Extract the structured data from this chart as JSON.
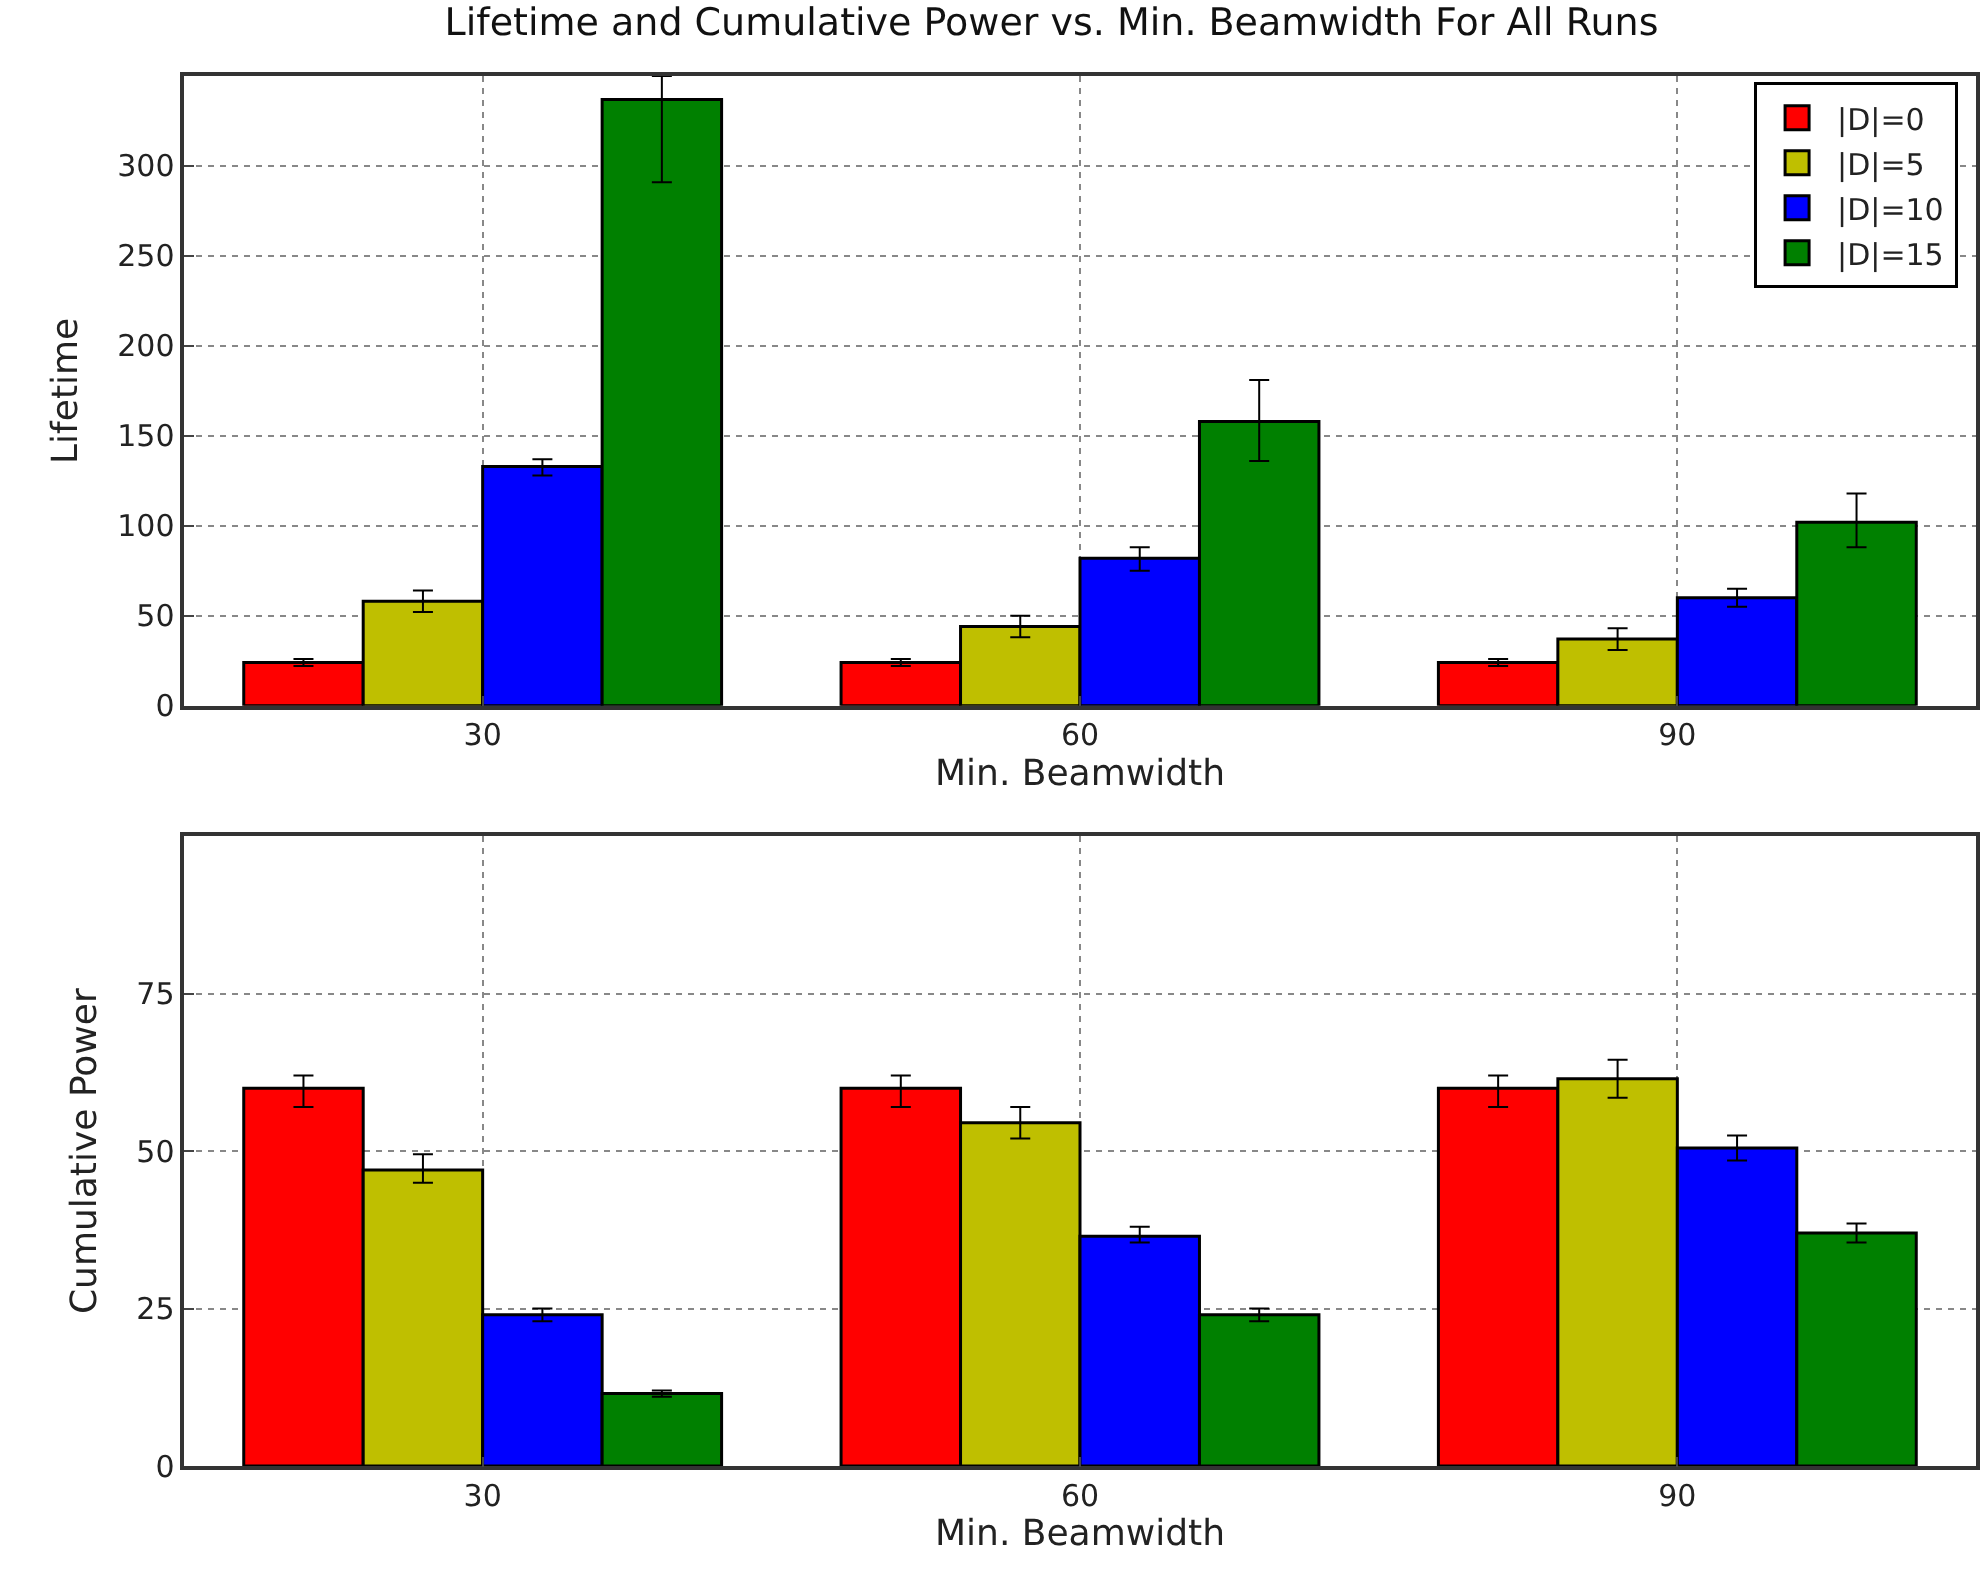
{
  "chart_data": [
    {
      "type": "bar",
      "title": "Lifetime and Cumulative Power vs. Min. Beamwidth For All Runs",
      "xlabel": "Min. Beamwidth",
      "ylabel": "Lifetime",
      "categories": [
        "30",
        "60",
        "90"
      ],
      "ylim": [
        0,
        350
      ],
      "yticks": [
        0,
        50,
        100,
        150,
        200,
        250,
        300
      ],
      "grid": true,
      "legend": "top right",
      "series": [
        {
          "name": "|D|=0",
          "color": "#ff0000",
          "values": [
            24,
            24,
            24
          ],
          "errors": [
            [
              22,
              26
            ],
            [
              22,
              26
            ],
            [
              22,
              26
            ]
          ]
        },
        {
          "name": "|D|=5",
          "color": "#bfbf00",
          "values": [
            58,
            44,
            37
          ],
          "errors": [
            [
              52,
              64
            ],
            [
              38,
              50
            ],
            [
              31,
              43
            ]
          ]
        },
        {
          "name": "|D|=10",
          "color": "#0000ff",
          "values": [
            133,
            82,
            60
          ],
          "errors": [
            [
              128,
              137
            ],
            [
              75,
              88
            ],
            [
              55,
              65
            ]
          ]
        },
        {
          "name": "|D|=15",
          "color": "#008000",
          "values": [
            337,
            158,
            102
          ],
          "errors": [
            [
              291,
              350
            ],
            [
              136,
              181
            ],
            [
              88,
              118
            ]
          ]
        }
      ]
    },
    {
      "type": "bar",
      "xlabel": "Min. Beamwidth",
      "ylabel": "Cumulative Power",
      "categories": [
        "30",
        "60",
        "90"
      ],
      "ylim": [
        0,
        100
      ],
      "yticks": [
        0,
        25,
        50,
        75
      ],
      "grid": true,
      "series": [
        {
          "color": "#ff0000",
          "values": [
            60,
            60,
            60
          ],
          "errors": [
            [
              57,
              62
            ],
            [
              57,
              62
            ],
            [
              57,
              62
            ]
          ]
        },
        {
          "color": "#bfbf00",
          "values": [
            47,
            54.5,
            61.5
          ],
          "errors": [
            [
              45,
              49.5
            ],
            [
              52,
              57
            ],
            [
              58.5,
              64.5
            ]
          ]
        },
        {
          "color": "#0000ff",
          "values": [
            24,
            36.5,
            50.5
          ],
          "errors": [
            [
              23,
              25
            ],
            [
              35.5,
              38
            ],
            [
              48.5,
              52.5
            ]
          ]
        },
        {
          "color": "#008000",
          "values": [
            11.5,
            24,
            37
          ],
          "errors": [
            [
              11,
              12
            ],
            [
              23,
              25
            ],
            [
              35.5,
              38.5
            ]
          ]
        }
      ]
    }
  ]
}
